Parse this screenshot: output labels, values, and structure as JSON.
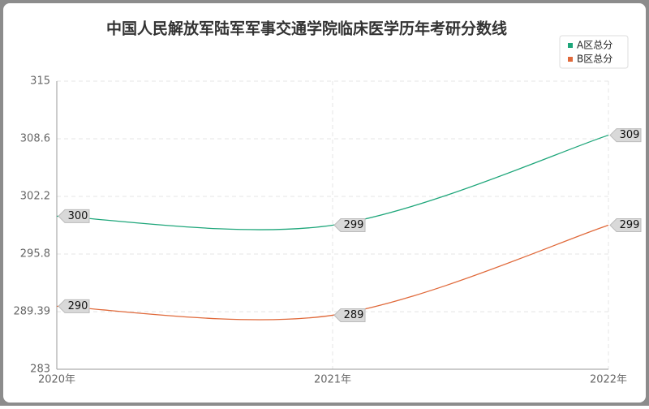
{
  "chart_data": {
    "type": "line",
    "title": "中国人民解放军陆军军事交通学院临床医学历年考研分数线",
    "categories": [
      "2020年",
      "2021年",
      "2022年"
    ],
    "series": [
      {
        "name": "A区总分",
        "color": "#1ea67a",
        "values": [
          300,
          299,
          309
        ]
      },
      {
        "name": "B区总分",
        "color": "#e0693a",
        "values": [
          290,
          289,
          299
        ]
      }
    ],
    "ylim": [
      283,
      315
    ],
    "yticks": [
      283,
      289.39,
      295.8,
      302.2,
      308.6,
      315
    ],
    "grid": true,
    "legend": "top-right",
    "smooth": true
  }
}
